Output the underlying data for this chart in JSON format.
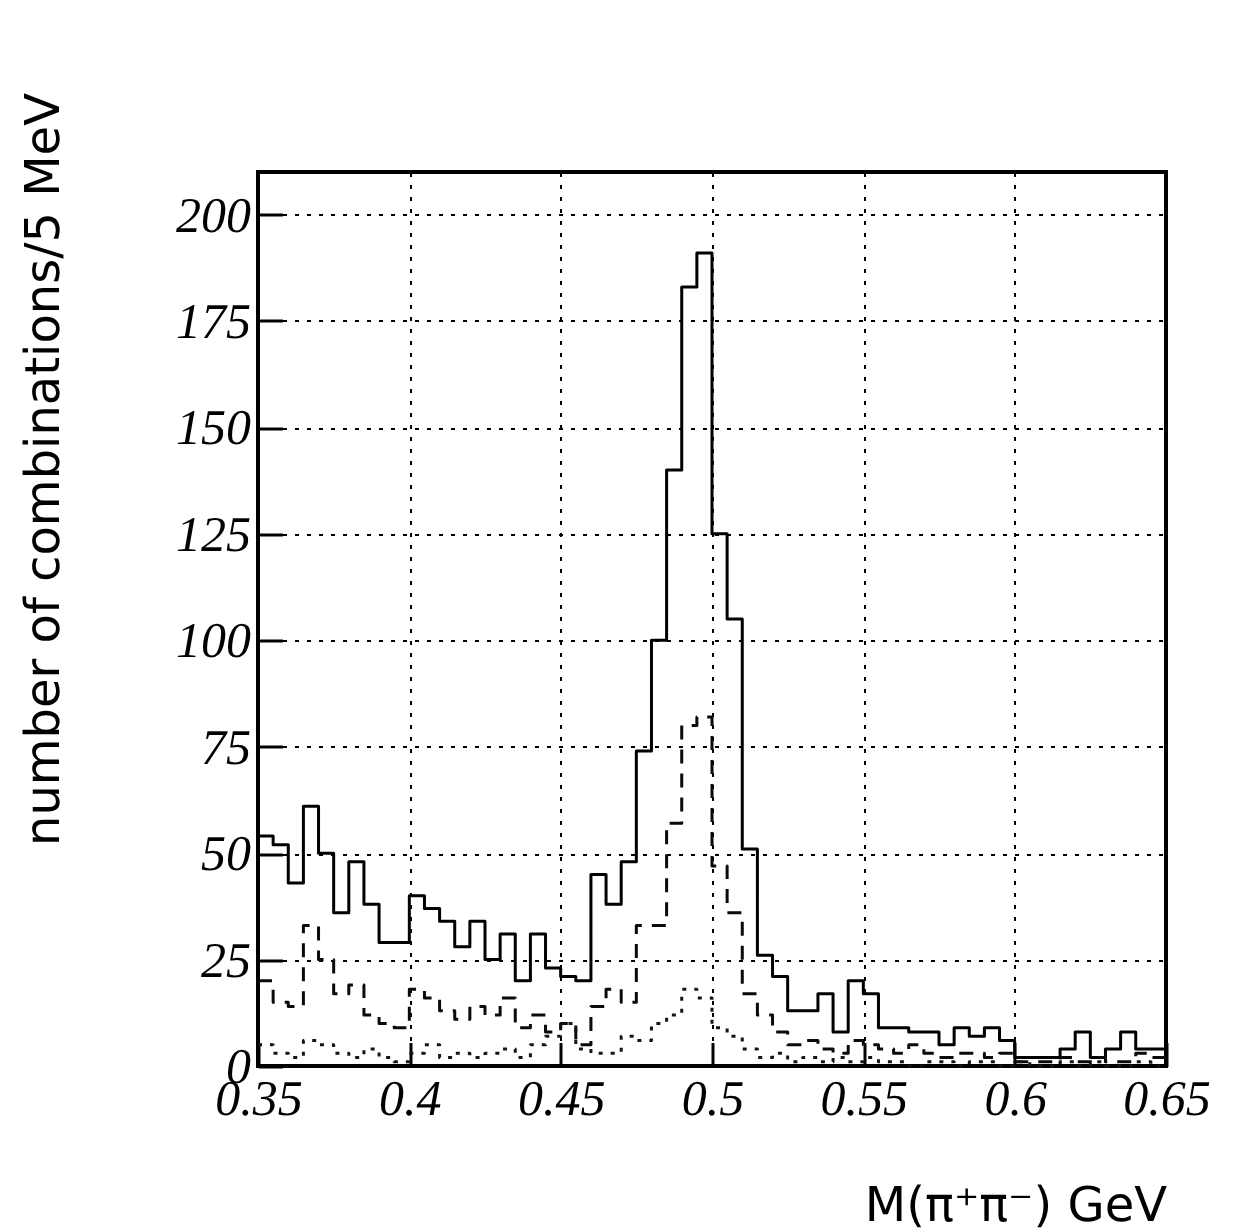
{
  "chart_data": {
    "type": "histogram",
    "xlabel": "M(π⁺π⁻) GeV",
    "ylabel": "number of combinations/5 MeV",
    "bins": [
      0.35,
      0.355,
      0.36,
      0.365,
      0.37,
      0.375,
      0.38,
      0.385,
      0.39,
      0.395,
      0.4,
      0.405,
      0.41,
      0.415,
      0.42,
      0.425,
      0.43,
      0.435,
      0.44,
      0.445,
      0.45,
      0.455,
      0.46,
      0.465,
      0.47,
      0.475,
      0.48,
      0.485,
      0.49,
      0.495,
      0.5,
      0.505,
      0.51,
      0.515,
      0.52,
      0.525,
      0.53,
      0.535,
      0.54,
      0.545,
      0.55,
      0.555,
      0.56,
      0.565,
      0.57,
      0.575,
      0.58,
      0.585,
      0.59,
      0.595,
      0.6,
      0.605,
      0.61,
      0.615,
      0.62,
      0.625,
      0.63,
      0.635,
      0.64,
      0.645,
      0.65
    ],
    "series": [
      {
        "color": "#000000",
        "line_style": "solid",
        "values": [
          54,
          52,
          43,
          61,
          50,
          36,
          48,
          38,
          29,
          29,
          40,
          37,
          34,
          28,
          34,
          25,
          31,
          20,
          31,
          23,
          21,
          20,
          45,
          38,
          48,
          74,
          100,
          140,
          183,
          191,
          125,
          105,
          51,
          26,
          21,
          13,
          13,
          17,
          8,
          20,
          17,
          9,
          9,
          8,
          8,
          5,
          9,
          7,
          9,
          6,
          2,
          2,
          2,
          4,
          8,
          2,
          4,
          8,
          4,
          4
        ]
      },
      {
        "color": "#0a0a0a",
        "line_style": "dashed",
        "values": [
          20,
          15,
          14,
          33,
          25,
          17,
          19,
          12,
          10,
          9,
          18,
          16,
          13,
          11,
          14,
          12,
          16,
          9,
          12,
          8,
          10,
          5,
          14,
          18,
          15,
          33,
          33,
          57,
          80,
          82,
          47,
          36,
          17,
          12,
          8,
          5,
          6,
          4,
          3,
          6,
          5,
          4,
          3,
          5,
          3,
          2,
          3,
          3,
          2,
          3,
          1,
          1,
          1,
          2,
          1,
          2,
          1,
          1,
          3,
          2
        ]
      },
      {
        "color": "#141414",
        "line_style": "dotted",
        "values": [
          5,
          3,
          2,
          6,
          5,
          3,
          2,
          4,
          2,
          1,
          3,
          5,
          2,
          3,
          2,
          3,
          4,
          2,
          5,
          7,
          10,
          4,
          3,
          3,
          7,
          6,
          10,
          12,
          18,
          16,
          9,
          7,
          4,
          2,
          3,
          1,
          2,
          1,
          2,
          1,
          2,
          1,
          1,
          0,
          1,
          1,
          0,
          1,
          1,
          0,
          1,
          0,
          0,
          1,
          0,
          1,
          0,
          0,
          1,
          0
        ]
      }
    ],
    "xlim": [
      0.35,
      0.65
    ],
    "xticks": [
      0.35,
      0.4,
      0.45,
      0.5,
      0.55,
      0.6,
      0.65
    ],
    "ylim": [
      0,
      210
    ],
    "yticks": [
      0,
      25,
      50,
      75,
      100,
      125,
      150,
      175,
      200
    ],
    "grid": true
  }
}
